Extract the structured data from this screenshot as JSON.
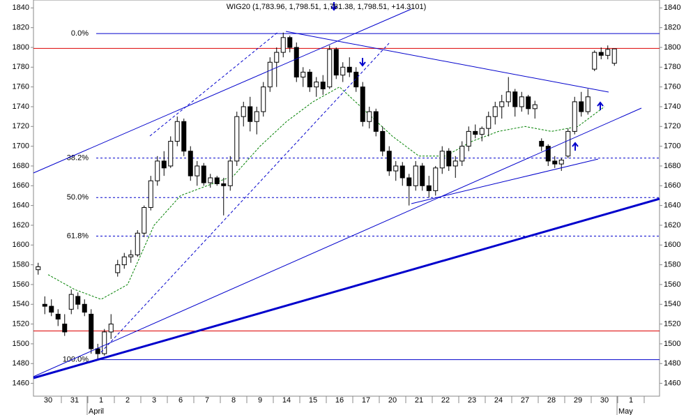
{
  "chart_data": {
    "type": "candlestick",
    "title": "WIG20 (1,783.96, 1,798.51, 1,781.38, 1,798.51, +14.3101)",
    "ylim": [
      1447,
      1848
    ],
    "yticks": [
      1460,
      1480,
      1500,
      1520,
      1540,
      1560,
      1580,
      1600,
      1620,
      1640,
      1660,
      1680,
      1700,
      1720,
      1740,
      1760,
      1780,
      1800,
      1820,
      1840
    ],
    "up_color": "#ffffff",
    "down_color": "#000000",
    "ma_color": "#008000",
    "levels": [
      {
        "label": "0.0%",
        "value": 1814,
        "color": "#0000cc",
        "style": "solid"
      },
      {
        "label": "38.2%",
        "value": 1688,
        "color": "#0000cc",
        "style": "dashed"
      },
      {
        "label": "50.0%",
        "value": 1648,
        "color": "#0000cc",
        "style": "dashed"
      },
      {
        "label": "61.8%",
        "value": 1609,
        "color": "#0000cc",
        "style": "dashed"
      },
      {
        "label": "100.0%",
        "value": 1484,
        "color": "#0000cc",
        "style": "solid"
      }
    ],
    "hlines": [
      {
        "value": 1799,
        "color": "#dd0000"
      },
      {
        "value": 1513,
        "color": "#dd0000"
      }
    ],
    "days": [
      {
        "label": "30",
        "ma": 1570,
        "candles": [
          [
            1575,
            1582,
            1570,
            1578
          ],
          [
            1540,
            1548,
            1530,
            1538
          ],
          [
            1538,
            1545,
            1528,
            1532
          ],
          [
            1530,
            1535,
            1518,
            1525
          ]
        ]
      },
      {
        "label": "31",
        "ma": 1555,
        "candles": [
          [
            1520,
            1530,
            1508,
            1512
          ],
          [
            1535,
            1555,
            1530,
            1550
          ],
          [
            1548,
            1552,
            1535,
            1540
          ],
          [
            1540,
            1545,
            1528,
            1532
          ]
        ]
      },
      {
        "label": "1",
        "month": "April",
        "ma": 1545,
        "candles": [
          [
            1530,
            1535,
            1490,
            1495
          ],
          [
            1495,
            1500,
            1484,
            1490
          ],
          [
            1490,
            1515,
            1488,
            1512
          ],
          [
            1512,
            1530,
            1505,
            1520
          ]
        ]
      },
      {
        "label": "2",
        "ma": 1560,
        "candles": [
          [
            1572,
            1585,
            1568,
            1580
          ],
          [
            1580,
            1592,
            1576,
            1588
          ],
          [
            1588,
            1595,
            1582,
            1590
          ],
          [
            1590,
            1615,
            1588,
            1612
          ]
        ]
      },
      {
        "label": "3",
        "ma": 1620,
        "candles": [
          [
            1612,
            1640,
            1608,
            1638
          ],
          [
            1638,
            1670,
            1635,
            1665
          ],
          [
            1665,
            1690,
            1660,
            1685
          ],
          [
            1685,
            1695,
            1670,
            1678
          ]
        ]
      },
      {
        "label": "6",
        "ma": 1650,
        "candles": [
          [
            1680,
            1710,
            1678,
            1705
          ],
          [
            1705,
            1730,
            1700,
            1725
          ],
          [
            1725,
            1728,
            1690,
            1695
          ],
          [
            1695,
            1700,
            1665,
            1670
          ]
        ]
      },
      {
        "label": "7",
        "ma": 1660,
        "candles": [
          [
            1670,
            1685,
            1660,
            1680
          ],
          [
            1680,
            1683,
            1660,
            1663
          ],
          [
            1663,
            1672,
            1658,
            1668
          ],
          [
            1668,
            1670,
            1660,
            1662
          ]
        ]
      },
      {
        "label": "8",
        "ma": 1670,
        "candles": [
          [
            1662,
            1668,
            1630,
            1660
          ],
          [
            1660,
            1690,
            1655,
            1685
          ],
          [
            1685,
            1735,
            1680,
            1730
          ],
          [
            1730,
            1745,
            1720,
            1740
          ]
        ]
      },
      {
        "label": "9",
        "ma": 1700,
        "candles": [
          [
            1740,
            1750,
            1715,
            1725
          ],
          [
            1725,
            1740,
            1712,
            1735
          ],
          [
            1735,
            1765,
            1730,
            1760
          ],
          [
            1760,
            1790,
            1755,
            1785
          ]
        ]
      },
      {
        "label": "14",
        "ma": 1725,
        "candles": [
          [
            1785,
            1800,
            1760,
            1795
          ],
          [
            1795,
            1815,
            1790,
            1810
          ],
          [
            1810,
            1812,
            1795,
            1800
          ],
          [
            1800,
            1805,
            1765,
            1770
          ]
        ]
      },
      {
        "label": "15",
        "ma": 1745,
        "candles": [
          [
            1770,
            1780,
            1760,
            1775
          ],
          [
            1775,
            1778,
            1755,
            1760
          ],
          [
            1760,
            1770,
            1750,
            1765
          ],
          [
            1765,
            1772,
            1752,
            1758
          ]
        ]
      },
      {
        "label": "16",
        "ma": 1760,
        "candles": [
          [
            1760,
            1802,
            1758,
            1798
          ],
          [
            1798,
            1800,
            1768,
            1772
          ],
          [
            1772,
            1785,
            1765,
            1780
          ],
          [
            1780,
            1790,
            1770,
            1775
          ]
        ]
      },
      {
        "label": "17",
        "ma": 1735,
        "candles": [
          [
            1775,
            1780,
            1755,
            1760
          ],
          [
            1760,
            1765,
            1720,
            1725
          ],
          [
            1725,
            1740,
            1718,
            1735
          ],
          [
            1735,
            1738,
            1710,
            1715
          ]
        ]
      },
      {
        "label": "20",
        "ma": 1710,
        "candles": [
          [
            1715,
            1720,
            1690,
            1695
          ],
          [
            1695,
            1700,
            1670,
            1675
          ],
          [
            1675,
            1685,
            1665,
            1680
          ],
          [
            1680,
            1684,
            1660,
            1668
          ]
        ]
      },
      {
        "label": "21",
        "ma": 1690,
        "candles": [
          [
            1668,
            1672,
            1640,
            1660
          ],
          [
            1660,
            1685,
            1655,
            1680
          ],
          [
            1680,
            1683,
            1655,
            1660
          ],
          [
            1660,
            1670,
            1648,
            1655
          ]
        ]
      },
      {
        "label": "22",
        "ma": 1690,
        "candles": [
          [
            1655,
            1680,
            1650,
            1678
          ],
          [
            1678,
            1700,
            1672,
            1695
          ],
          [
            1695,
            1698,
            1675,
            1680
          ],
          [
            1680,
            1690,
            1668,
            1685
          ]
        ]
      },
      {
        "label": "23",
        "ma": 1705,
        "candles": [
          [
            1685,
            1705,
            1680,
            1700
          ],
          [
            1700,
            1720,
            1695,
            1715
          ],
          [
            1715,
            1722,
            1708,
            1712
          ],
          [
            1712,
            1720,
            1705,
            1718
          ]
        ]
      },
      {
        "label": "24",
        "ma": 1715,
        "candles": [
          [
            1718,
            1735,
            1710,
            1730
          ],
          [
            1730,
            1745,
            1722,
            1740
          ],
          [
            1740,
            1752,
            1728,
            1745
          ],
          [
            1745,
            1770,
            1740,
            1755
          ]
        ]
      },
      {
        "label": "27",
        "ma": 1720,
        "candles": [
          [
            1755,
            1758,
            1730,
            1740
          ],
          [
            1740,
            1755,
            1735,
            1750
          ],
          [
            1750,
            1752,
            1732,
            1738
          ],
          [
            1738,
            1746,
            1728,
            1742
          ]
        ]
      },
      {
        "label": "28",
        "ma": 1715,
        "candles": [
          [
            1705,
            1708,
            1695,
            1700
          ],
          [
            1700,
            1702,
            1680,
            1685
          ],
          [
            1685,
            1690,
            1678,
            1682
          ],
          [
            1682,
            1688,
            1675,
            1686
          ]
        ]
      },
      {
        "label": "29",
        "ma": 1720,
        "candles": [
          [
            1690,
            1718,
            1688,
            1715
          ],
          [
            1715,
            1750,
            1712,
            1745
          ],
          [
            1745,
            1755,
            1730,
            1735
          ],
          [
            1735,
            1758,
            1732,
            1750
          ]
        ]
      },
      {
        "label": "30",
        "ma": 1740,
        "candles": [
          [
            1778,
            1797,
            1776,
            1795
          ],
          [
            1795,
            1800,
            1788,
            1792
          ],
          [
            1792,
            1802,
            1788,
            1798
          ],
          [
            1783.96,
            1798.51,
            1781.38,
            1798.51
          ]
        ]
      },
      {
        "label": "1",
        "month": "May",
        "candles": []
      }
    ]
  }
}
